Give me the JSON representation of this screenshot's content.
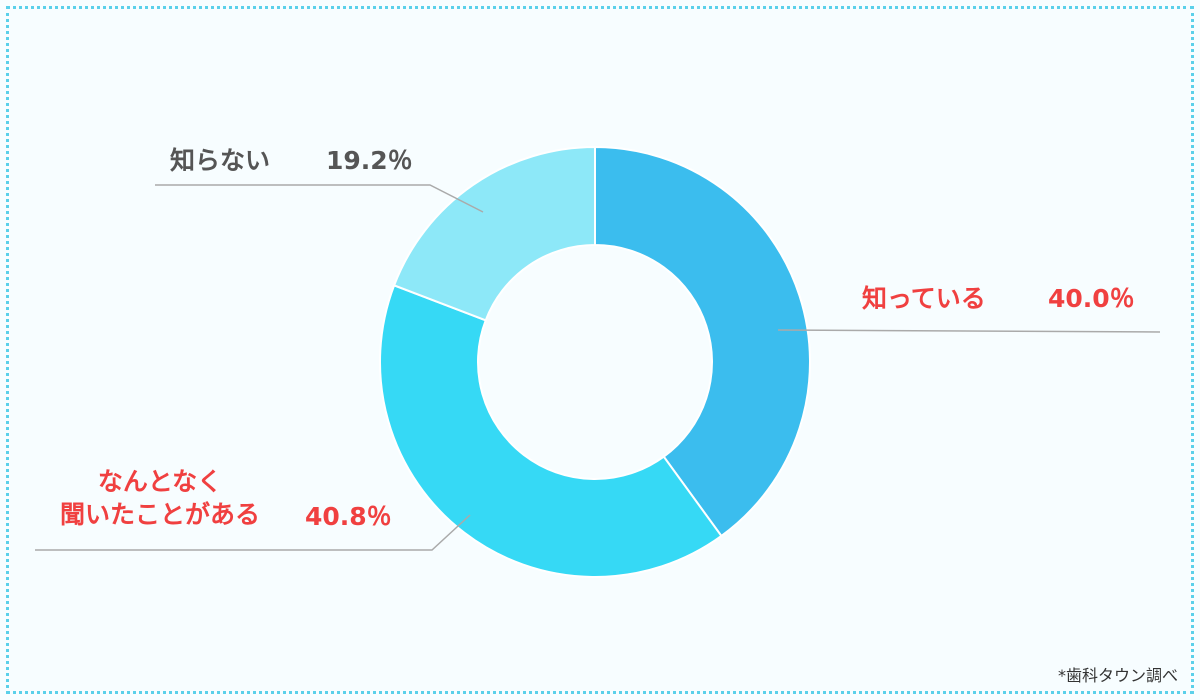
{
  "chart_data": {
    "type": "pie",
    "categories": [
      "知っている",
      "なんとなく\n聞いたことがある",
      "知らない"
    ],
    "values": [
      40.0,
      40.8,
      19.2
    ],
    "value_labels": [
      "40.0％",
      "40.8％",
      "19.2％"
    ],
    "colors": [
      "#3bbdee",
      "#36d9f5",
      "#8de8f8"
    ],
    "label_colors": [
      "#f04040",
      "#f04040",
      "#555555"
    ],
    "source": "*歯科タウン調べ"
  }
}
